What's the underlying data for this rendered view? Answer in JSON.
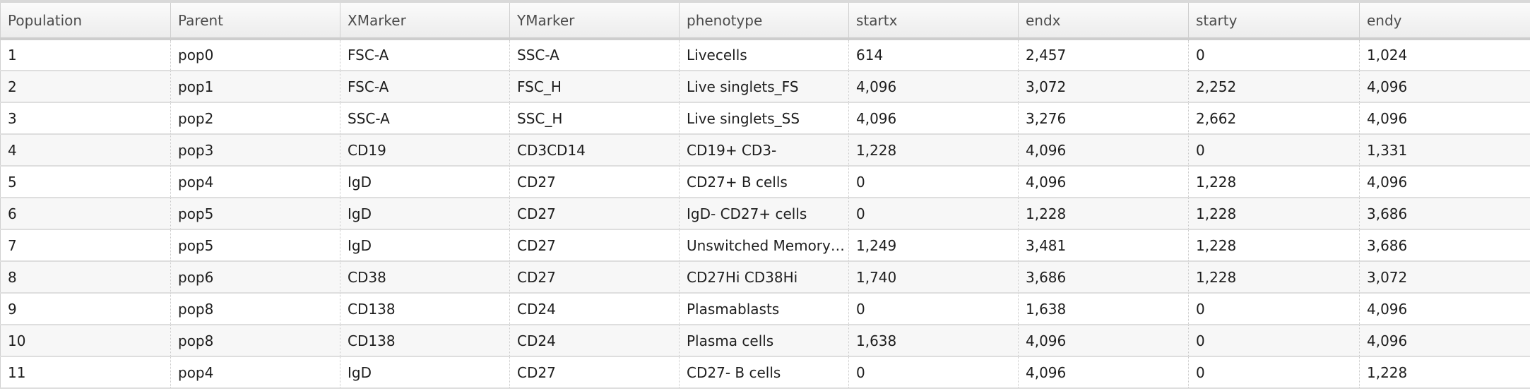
{
  "columns": [
    "Population",
    "Parent",
    "XMarker",
    "YMarker",
    "phenotype",
    "startx",
    "endx",
    "starty",
    "endy"
  ],
  "rows": [
    [
      "1",
      "pop0",
      "FSC-A",
      "SSC-A",
      "Livecells",
      "614",
      "2,457",
      "0",
      "1,024"
    ],
    [
      "2",
      "pop1",
      "FSC-A",
      "FSC_H",
      "Live singlets_FS",
      "4,096",
      "3,072",
      "2,252",
      "4,096"
    ],
    [
      "3",
      "pop2",
      "SSC-A",
      "SSC_H",
      "Live singlets_SS",
      "4,096",
      "3,276",
      "2,662",
      "4,096"
    ],
    [
      "4",
      "pop3",
      "CD19",
      "CD3CD14",
      "CD19+ CD3-",
      "1,228",
      "4,096",
      "0",
      "1,331"
    ],
    [
      "5",
      "pop4",
      "IgD",
      "CD27",
      "CD27+ B cells",
      "0",
      "4,096",
      "1,228",
      "4,096"
    ],
    [
      "6",
      "pop5",
      "IgD",
      "CD27",
      "IgD- CD27+ cells",
      "0",
      "1,228",
      "1,228",
      "3,686"
    ],
    [
      "7",
      "pop5",
      "IgD",
      "CD27",
      "Unswitched Memory…",
      "1,249",
      "3,481",
      "1,228",
      "3,686"
    ],
    [
      "8",
      "pop6",
      "CD38",
      "CD27",
      "CD27Hi CD38Hi",
      "1,740",
      "3,686",
      "1,228",
      "3,072"
    ],
    [
      "9",
      "pop8",
      "CD138",
      "CD24",
      "Plasmablasts",
      "0",
      "1,638",
      "0",
      "4,096"
    ],
    [
      "10",
      "pop8",
      "CD138",
      "CD24",
      "Plasma cells",
      "1,638",
      "4,096",
      "0",
      "4,096"
    ],
    [
      "11",
      "pop4",
      "IgD",
      "CD27",
      "CD27- B cells",
      "0",
      "4,096",
      "0",
      "1,228"
    ]
  ]
}
